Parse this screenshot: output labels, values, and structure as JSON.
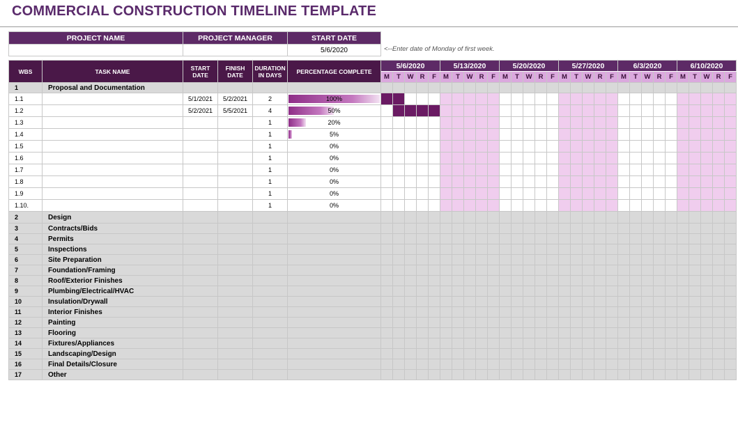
{
  "title": "COMMERCIAL CONSTRUCTION TIMELINE TEMPLATE",
  "info": {
    "headers": [
      "PROJECT NAME",
      "PROJECT MANAGER",
      "START DATE"
    ],
    "project_name": "",
    "project_manager": "",
    "start_date": "5/6/2020",
    "hint": "<--Enter date of Monday of first week."
  },
  "columns": {
    "wbs": "WBS",
    "task_name": "TASK NAME",
    "start_date": "START DATE",
    "finish_date": "FINISH DATE",
    "duration": "DURATION IN DAYS",
    "percent": "PERCENTAGE COMPLETE"
  },
  "weeks": [
    "5/6/2020",
    "5/13/2020",
    "5/20/2020",
    "5/27/2020",
    "6/3/2020",
    "6/10/2020"
  ],
  "days": [
    "M",
    "T",
    "W",
    "R",
    "F"
  ],
  "colors": {
    "header": "#5d2a66",
    "bar": "#6a1a63",
    "pink": "#f0cdee",
    "category_bg": "#d9d9d9",
    "title": "#5a2a6b"
  },
  "rows": [
    {
      "type": "cat",
      "wbs": "1",
      "name": "Proposal and Documentation",
      "start": "",
      "finish": "",
      "duration": "",
      "percent": "",
      "bars": []
    },
    {
      "type": "sub",
      "wbs": "1.1",
      "name": "",
      "start": "5/1/2021",
      "finish": "5/2/2021",
      "duration": "2",
      "percent": "100%",
      "pct": 1.0,
      "bars": [
        0,
        1
      ]
    },
    {
      "type": "sub",
      "wbs": "1.2",
      "name": "",
      "start": "5/2/2021",
      "finish": "5/5/2021",
      "duration": "4",
      "percent": "50%",
      "pct": 0.5,
      "bars": [
        1,
        2,
        3,
        4
      ]
    },
    {
      "type": "sub",
      "wbs": "1.3",
      "name": "",
      "start": "",
      "finish": "",
      "duration": "1",
      "percent": "20%",
      "pct": 0.2,
      "bars": []
    },
    {
      "type": "sub",
      "wbs": "1.4",
      "name": "",
      "start": "",
      "finish": "",
      "duration": "1",
      "percent": "5%",
      "pct": 0.05,
      "bars": []
    },
    {
      "type": "sub",
      "wbs": "1.5",
      "name": "",
      "start": "",
      "finish": "",
      "duration": "1",
      "percent": "0%",
      "pct": 0,
      "bars": []
    },
    {
      "type": "sub",
      "wbs": "1.6",
      "name": "",
      "start": "",
      "finish": "",
      "duration": "1",
      "percent": "0%",
      "pct": 0,
      "bars": []
    },
    {
      "type": "sub",
      "wbs": "1.7",
      "name": "",
      "start": "",
      "finish": "",
      "duration": "1",
      "percent": "0%",
      "pct": 0,
      "bars": []
    },
    {
      "type": "sub",
      "wbs": "1.8",
      "name": "",
      "start": "",
      "finish": "",
      "duration": "1",
      "percent": "0%",
      "pct": 0,
      "bars": []
    },
    {
      "type": "sub",
      "wbs": "1.9",
      "name": "",
      "start": "",
      "finish": "",
      "duration": "1",
      "percent": "0%",
      "pct": 0,
      "bars": []
    },
    {
      "type": "sub",
      "wbs": "1.10.",
      "name": "",
      "start": "",
      "finish": "",
      "duration": "1",
      "percent": "0%",
      "pct": 0,
      "bars": []
    },
    {
      "type": "cat",
      "wbs": "2",
      "name": "Design",
      "start": "",
      "finish": "",
      "duration": "",
      "percent": "",
      "bars": []
    },
    {
      "type": "cat",
      "wbs": "3",
      "name": "Contracts/Bids",
      "start": "",
      "finish": "",
      "duration": "",
      "percent": "",
      "bars": []
    },
    {
      "type": "cat",
      "wbs": "4",
      "name": "Permits",
      "start": "",
      "finish": "",
      "duration": "",
      "percent": "",
      "bars": []
    },
    {
      "type": "cat",
      "wbs": "5",
      "name": "Inspections",
      "start": "",
      "finish": "",
      "duration": "",
      "percent": "",
      "bars": []
    },
    {
      "type": "cat",
      "wbs": "6",
      "name": "Site Preparation",
      "start": "",
      "finish": "",
      "duration": "",
      "percent": "",
      "bars": []
    },
    {
      "type": "cat",
      "wbs": "7",
      "name": "Foundation/Framing",
      "start": "",
      "finish": "",
      "duration": "",
      "percent": "",
      "bars": []
    },
    {
      "type": "cat",
      "wbs": "8",
      "name": "Roof/Exterior Finishes",
      "start": "",
      "finish": "",
      "duration": "",
      "percent": "",
      "bars": []
    },
    {
      "type": "cat",
      "wbs": "9",
      "name": "Plumbing/Electrical/HVAC",
      "start": "",
      "finish": "",
      "duration": "",
      "percent": "",
      "bars": []
    },
    {
      "type": "cat",
      "wbs": "10",
      "name": "Insulation/Drywall",
      "start": "",
      "finish": "",
      "duration": "",
      "percent": "",
      "bars": []
    },
    {
      "type": "cat",
      "wbs": "11",
      "name": "Interior Finishes",
      "start": "",
      "finish": "",
      "duration": "",
      "percent": "",
      "bars": []
    },
    {
      "type": "cat",
      "wbs": "12",
      "name": "Painting",
      "start": "",
      "finish": "",
      "duration": "",
      "percent": "",
      "bars": []
    },
    {
      "type": "cat",
      "wbs": "13",
      "name": "Flooring",
      "start": "",
      "finish": "",
      "duration": "",
      "percent": "",
      "bars": []
    },
    {
      "type": "cat",
      "wbs": "14",
      "name": "Fixtures/Appliances",
      "start": "",
      "finish": "",
      "duration": "",
      "percent": "",
      "bars": []
    },
    {
      "type": "cat",
      "wbs": "15",
      "name": "Landscaping/Design",
      "start": "",
      "finish": "",
      "duration": "",
      "percent": "",
      "bars": []
    },
    {
      "type": "cat",
      "wbs": "16",
      "name": "Final Details/Closure",
      "start": "",
      "finish": "",
      "duration": "",
      "percent": "",
      "bars": []
    },
    {
      "type": "cat",
      "wbs": "17",
      "name": "Other",
      "start": "",
      "finish": "",
      "duration": "",
      "percent": "",
      "bars": []
    }
  ]
}
